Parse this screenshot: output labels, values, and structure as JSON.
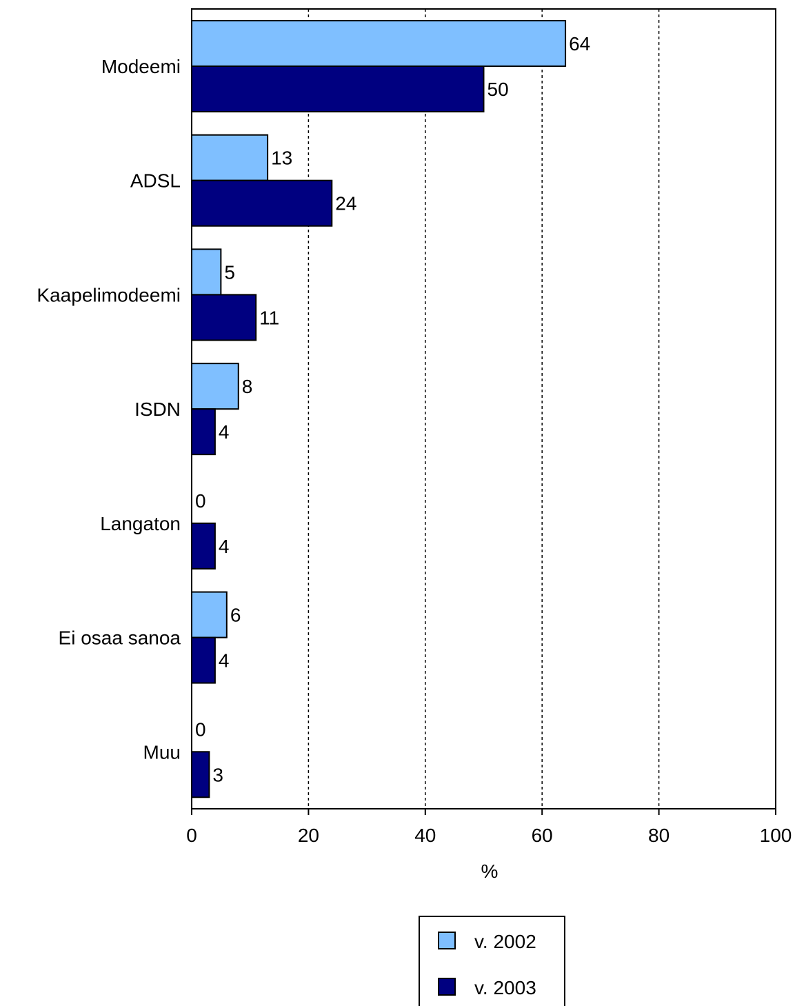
{
  "chart_data": {
    "type": "bar",
    "orientation": "horizontal",
    "categories": [
      "Modeemi",
      "ADSL",
      "Kaapelimodeemi",
      "ISDN",
      "Langaton",
      "Ei osaa sanoa",
      "Muu"
    ],
    "series": [
      {
        "name": "v. 2002",
        "values": [
          64,
          13,
          5,
          8,
          0,
          6,
          0
        ],
        "color": "#7FBFFF"
      },
      {
        "name": "v. 2003",
        "values": [
          50,
          24,
          11,
          4,
          4,
          4,
          3
        ],
        "color": "#000080"
      }
    ],
    "xlabel": "%",
    "xlim": [
      0,
      100
    ],
    "xticks": [
      0,
      20,
      40,
      60,
      80,
      100
    ],
    "grid": "vertical dashed",
    "data_labels": true,
    "legend_position": "bottom"
  }
}
